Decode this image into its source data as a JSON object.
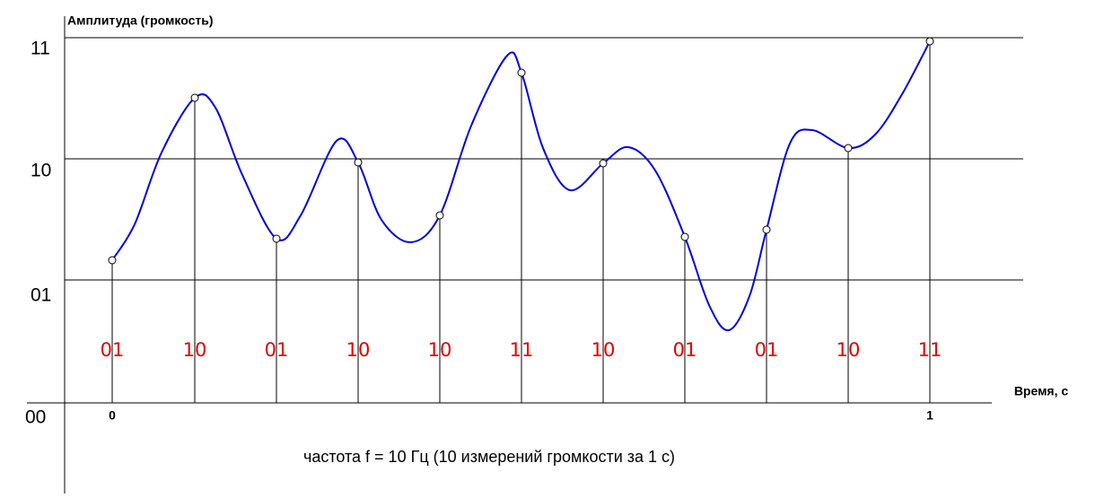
{
  "axes": {
    "y_title": "Амплитуда (громкость)",
    "x_title": "Время, с",
    "levels": [
      "11",
      "10",
      "01",
      "00"
    ],
    "x_ticks": [
      "0",
      "1"
    ]
  },
  "samples": [
    "01",
    "10",
    "01",
    "10",
    "10",
    "11",
    "10",
    "01",
    "01",
    "10",
    "11"
  ],
  "caption": "частота f = 10 Гц (10 измерений громкости за 1 с)"
}
